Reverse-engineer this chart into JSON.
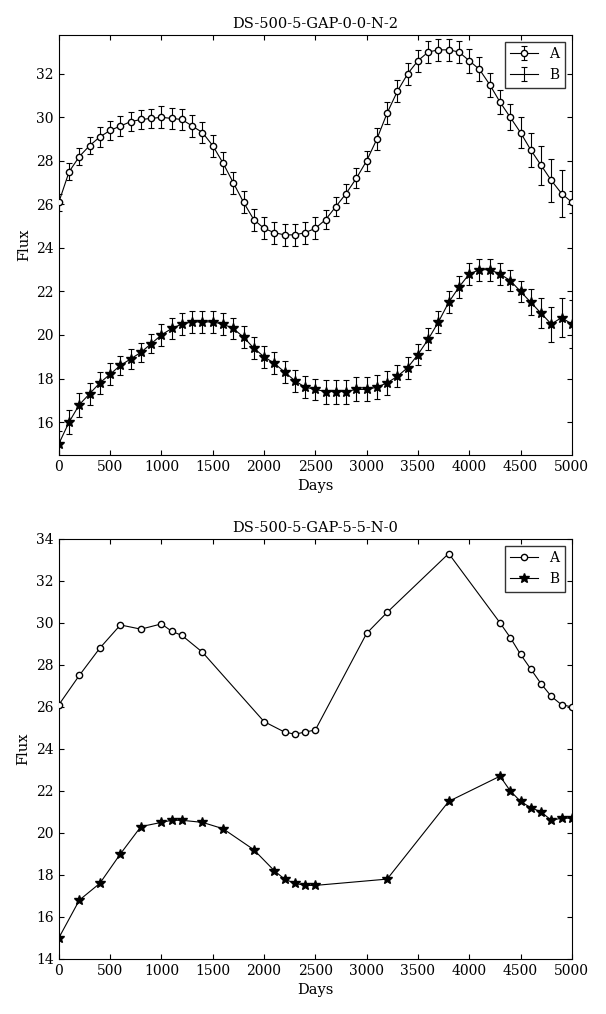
{
  "title1": "DS-500-5-GAP-0-0-N-2",
  "title2": "DS-500-5-GAP-5-5-N-0",
  "xlabel": "Days",
  "ylabel": "Flux",
  "plot1": {
    "A_x": [
      0,
      100,
      200,
      300,
      400,
      500,
      600,
      700,
      800,
      900,
      1000,
      1100,
      1200,
      1300,
      1400,
      1500,
      1600,
      1700,
      1800,
      1900,
      2000,
      2100,
      2200,
      2300,
      2400,
      2500,
      2600,
      2700,
      2800,
      2900,
      3000,
      3100,
      3200,
      3300,
      3400,
      3500,
      3600,
      3700,
      3800,
      3900,
      4000,
      4100,
      4200,
      4300,
      4400,
      4500,
      4600,
      4700,
      4800,
      4900,
      5000
    ],
    "A_y": [
      26.1,
      27.5,
      28.2,
      28.7,
      29.1,
      29.4,
      29.6,
      29.8,
      29.9,
      29.95,
      30.0,
      29.95,
      29.9,
      29.6,
      29.3,
      28.7,
      27.9,
      27.0,
      26.1,
      25.3,
      24.9,
      24.7,
      24.6,
      24.6,
      24.7,
      24.9,
      25.3,
      25.9,
      26.5,
      27.2,
      28.0,
      29.0,
      30.2,
      31.2,
      32.0,
      32.6,
      33.0,
      33.1,
      33.1,
      33.0,
      32.6,
      32.2,
      31.5,
      30.7,
      30.0,
      29.3,
      28.5,
      27.8,
      27.1,
      26.5,
      26.1
    ],
    "A_err": [
      0.4,
      0.4,
      0.4,
      0.4,
      0.45,
      0.45,
      0.45,
      0.45,
      0.45,
      0.45,
      0.5,
      0.5,
      0.5,
      0.5,
      0.5,
      0.5,
      0.5,
      0.5,
      0.5,
      0.5,
      0.5,
      0.5,
      0.5,
      0.5,
      0.5,
      0.5,
      0.45,
      0.45,
      0.45,
      0.45,
      0.45,
      0.5,
      0.5,
      0.5,
      0.5,
      0.5,
      0.5,
      0.5,
      0.5,
      0.5,
      0.55,
      0.55,
      0.55,
      0.55,
      0.6,
      0.7,
      0.8,
      0.9,
      1.0,
      1.1,
      0.5
    ],
    "B_x": [
      0,
      100,
      200,
      300,
      400,
      500,
      600,
      700,
      800,
      900,
      1000,
      1100,
      1200,
      1300,
      1400,
      1500,
      1600,
      1700,
      1800,
      1900,
      2000,
      2100,
      2200,
      2300,
      2400,
      2500,
      2600,
      2700,
      2800,
      2900,
      3000,
      3100,
      3200,
      3300,
      3400,
      3500,
      3600,
      3700,
      3800,
      3900,
      4000,
      4100,
      4200,
      4300,
      4400,
      4500,
      4600,
      4700,
      4800,
      4900,
      5000
    ],
    "B_y": [
      15.0,
      16.0,
      16.8,
      17.3,
      17.8,
      18.2,
      18.6,
      18.9,
      19.2,
      19.6,
      20.0,
      20.3,
      20.5,
      20.6,
      20.6,
      20.6,
      20.5,
      20.3,
      19.9,
      19.4,
      19.0,
      18.7,
      18.3,
      17.9,
      17.6,
      17.5,
      17.4,
      17.4,
      17.4,
      17.5,
      17.5,
      17.6,
      17.8,
      18.1,
      18.5,
      19.1,
      19.8,
      20.6,
      21.5,
      22.2,
      22.8,
      23.0,
      23.0,
      22.8,
      22.5,
      22.0,
      21.5,
      21.0,
      20.5,
      20.8,
      20.5
    ],
    "B_err": [
      0.6,
      0.55,
      0.55,
      0.5,
      0.5,
      0.5,
      0.45,
      0.45,
      0.45,
      0.45,
      0.5,
      0.5,
      0.5,
      0.5,
      0.5,
      0.5,
      0.5,
      0.5,
      0.5,
      0.5,
      0.5,
      0.5,
      0.5,
      0.5,
      0.5,
      0.5,
      0.55,
      0.55,
      0.55,
      0.55,
      0.55,
      0.55,
      0.55,
      0.5,
      0.5,
      0.5,
      0.5,
      0.5,
      0.5,
      0.5,
      0.5,
      0.5,
      0.5,
      0.5,
      0.5,
      0.5,
      0.6,
      0.7,
      0.8,
      0.9,
      1.1
    ],
    "ylim": [
      14.5,
      33.8
    ],
    "yticks": [
      16,
      18,
      20,
      22,
      24,
      26,
      28,
      30,
      32
    ]
  },
  "plot2": {
    "A_x": [
      0,
      200,
      400,
      600,
      800,
      1000,
      1100,
      1200,
      1400,
      2000,
      2200,
      2300,
      2400,
      2500,
      3000,
      3200,
      3800,
      4300,
      4400,
      4500,
      4600,
      4700,
      4800,
      4900,
      5000
    ],
    "A_y": [
      26.1,
      27.5,
      28.8,
      29.9,
      29.7,
      29.95,
      29.6,
      29.4,
      28.6,
      25.3,
      24.8,
      24.7,
      24.8,
      24.9,
      29.5,
      30.5,
      33.3,
      30.0,
      29.3,
      28.5,
      27.8,
      27.1,
      26.5,
      26.1,
      26.0
    ],
    "B_x": [
      0,
      200,
      400,
      600,
      800,
      1000,
      1100,
      1200,
      1400,
      1600,
      1900,
      2100,
      2200,
      2300,
      2400,
      2500,
      3200,
      3800,
      4300,
      4400,
      4500,
      4600,
      4700,
      4800,
      4900,
      5000
    ],
    "B_y": [
      15.0,
      16.8,
      17.6,
      19.0,
      20.3,
      20.5,
      20.6,
      20.6,
      20.5,
      20.2,
      19.2,
      18.2,
      17.8,
      17.6,
      17.5,
      17.5,
      17.8,
      21.5,
      22.7,
      22.0,
      21.5,
      21.2,
      21.0,
      20.6,
      20.7,
      20.7
    ],
    "ylim": [
      14.0,
      34.0
    ],
    "yticks": [
      14,
      16,
      18,
      20,
      22,
      24,
      26,
      28,
      30,
      32,
      34
    ]
  },
  "xlim": [
    0,
    5000
  ],
  "xticks": [
    0,
    500,
    1000,
    1500,
    2000,
    2500,
    3000,
    3500,
    4000,
    4500,
    5000
  ]
}
